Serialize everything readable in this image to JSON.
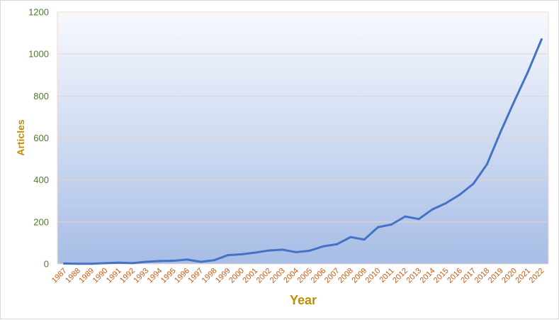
{
  "chart_data": {
    "type": "line",
    "title": "",
    "xlabel": "Year",
    "ylabel": "Articles",
    "ylim": [
      0,
      1200
    ],
    "yticks": [
      0,
      200,
      400,
      600,
      800,
      1000,
      1200
    ],
    "grid": true,
    "legend": "none",
    "colors": {
      "line": "#4472c4",
      "plot_bg_top": "#f7f9fd",
      "plot_bg_bottom": "#a7bde6",
      "ytick_text": "#4e7a2e",
      "xtick_text": "#c55a11",
      "axis_title": "#bf8f00"
    },
    "categories": [
      "1987",
      "1988",
      "1989",
      "1990",
      "1991",
      "1992",
      "1993",
      "1994",
      "1995",
      "1996",
      "1997",
      "1998",
      "1999",
      "2000",
      "2001",
      "2002",
      "2003",
      "2004",
      "2005",
      "2006",
      "2007",
      "2008",
      "2009",
      "2010",
      "2011",
      "2012",
      "2013",
      "2014",
      "2015",
      "2016",
      "2017",
      "2018",
      "2019",
      "2020",
      "2021",
      "2022"
    ],
    "series": [
      {
        "values": [
          2,
          1,
          1,
          4,
          6,
          4,
          10,
          14,
          15,
          21,
          10,
          18,
          42,
          46,
          54,
          64,
          68,
          56,
          63,
          84,
          94,
          128,
          116,
          175,
          188,
          226,
          214,
          260,
          290,
          330,
          382,
          475,
          630,
          775,
          915,
          1070
        ]
      }
    ]
  }
}
